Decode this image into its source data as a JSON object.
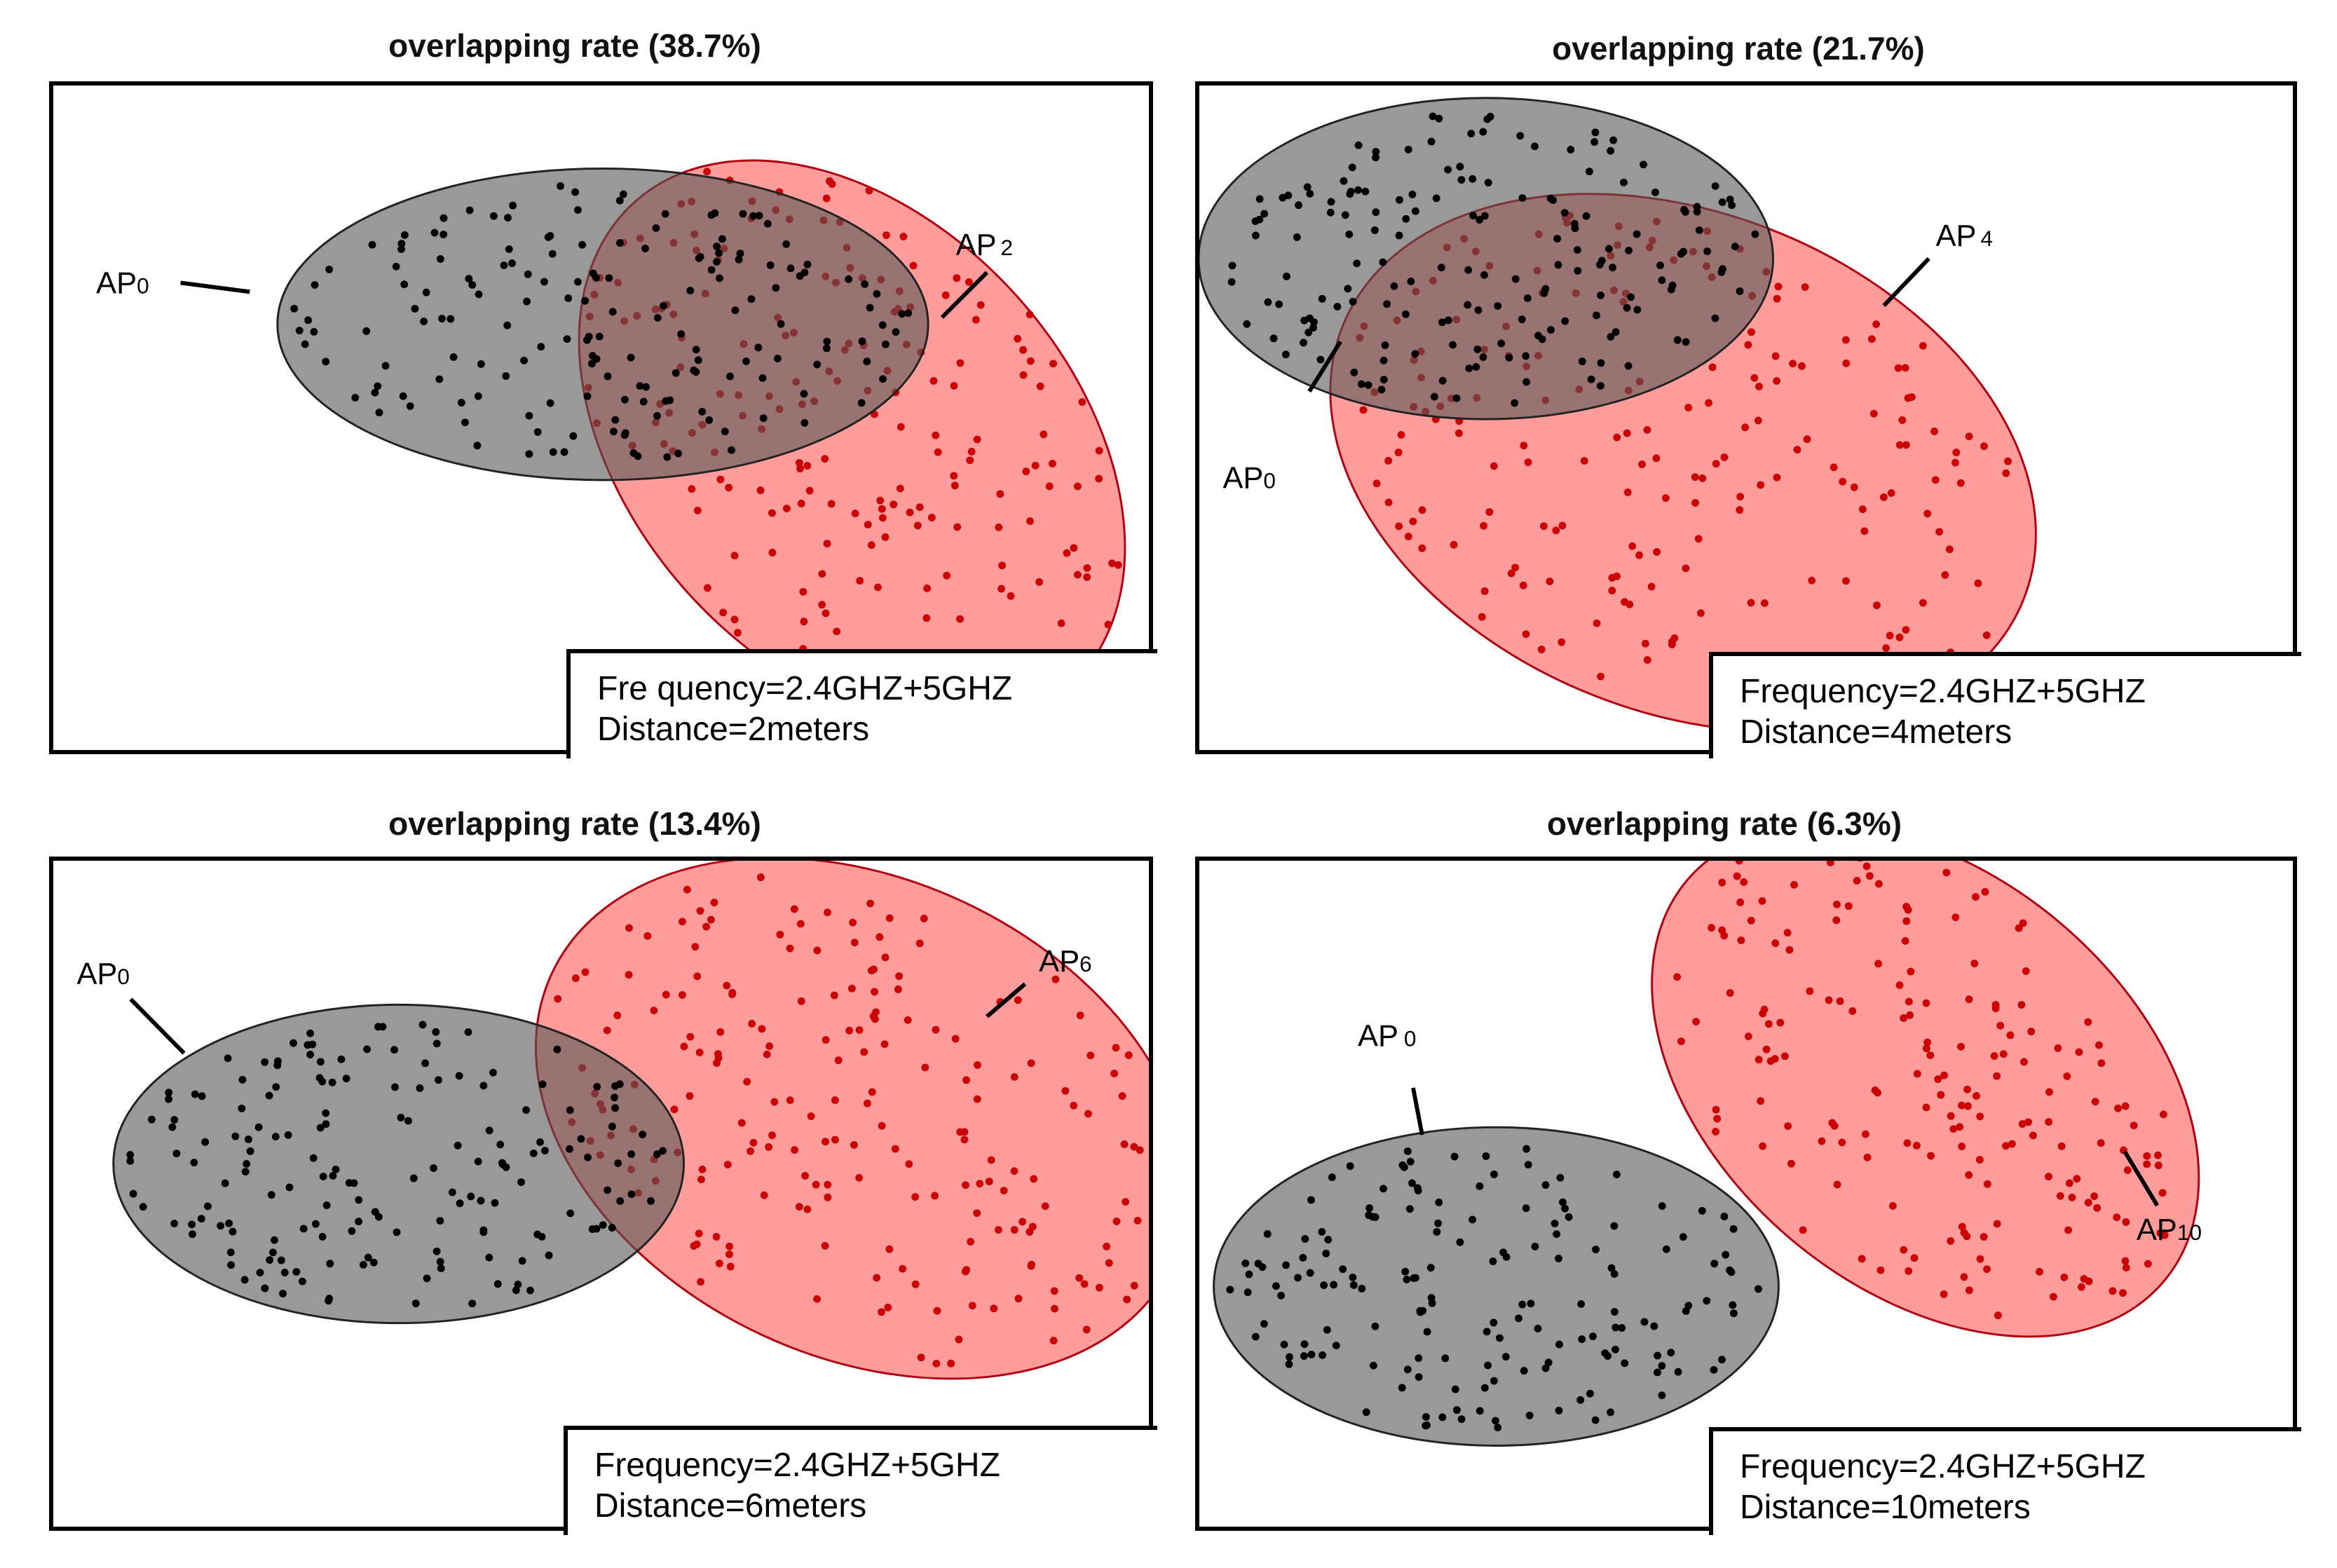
{
  "colors": {
    "ap0_fill": "#555555",
    "ap0_point": "#000000",
    "other_fill": "#ff4d4d",
    "other_stroke": "#b3000f",
    "other_point": "#cc0000"
  },
  "panels": [
    {
      "title": "overlapping rate  (38.7%)",
      "overlap_rate_percent": 38.7,
      "ap0_label": "AP",
      "ap0_sub": "0",
      "other_label": "AP",
      "other_sub": "2",
      "frequency_text": "Fre quency=2.4GHZ+5GHZ",
      "distance_text": "Distance=2meters",
      "distance_m": 2
    },
    {
      "title": "overlapping rate  (21.7%)",
      "overlap_rate_percent": 21.7,
      "ap0_label": "AP",
      "ap0_sub": "0",
      "other_label": "AP",
      "other_sub": "4",
      "frequency_text": "Frequency=2.4GHZ+5GHZ",
      "distance_text": "Distance=4meters",
      "distance_m": 4
    },
    {
      "title": "overlapping rate  (13.4%)",
      "overlap_rate_percent": 13.4,
      "ap0_label": "AP",
      "ap0_sub": "0",
      "other_label": "AP",
      "other_sub": "6",
      "frequency_text": "Frequency=2.4GHZ+5GHZ",
      "distance_text": "Distance=6meters",
      "distance_m": 6
    },
    {
      "title": "overlapping rate  (6.3%)",
      "overlap_rate_percent": 6.3,
      "ap0_label": "AP",
      "ap0_sub": "0",
      "other_label": "AP",
      "other_sub": "10",
      "frequency_text": "Frequency=2.4GHZ+5GHZ",
      "distance_text": "Distance=10meters",
      "distance_m": 10
    }
  ]
}
